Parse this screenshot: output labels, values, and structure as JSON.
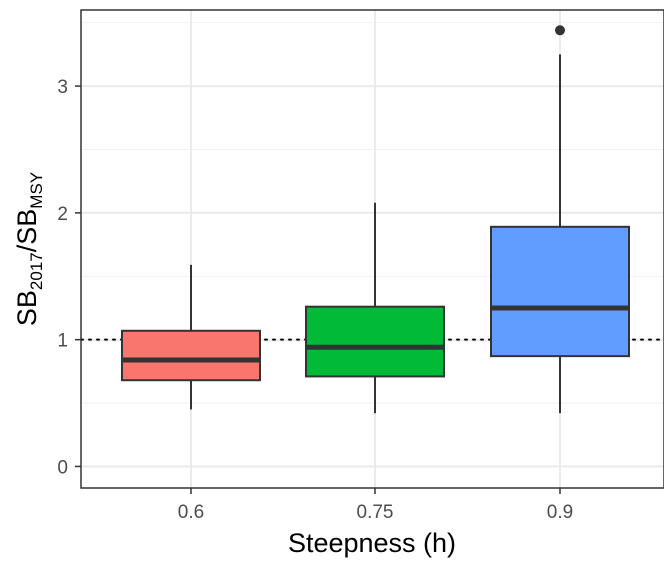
{
  "chart_data": {
    "type": "boxplot",
    "xlabel": "Steepness (h)",
    "ylabel": {
      "part1": "SB",
      "sub1": "2017",
      "slash": "/",
      "part2": "SB",
      "sub2": "MSY"
    },
    "categories": [
      "0.6",
      "0.75",
      "0.9"
    ],
    "yticks": [
      "0",
      "1",
      "2",
      "3"
    ],
    "ylim": [
      -0.17,
      3.6
    ],
    "reference_line": 1,
    "grid": true,
    "boxes": [
      {
        "category": "0.6",
        "min": 0.45,
        "q1": 0.68,
        "median": 0.84,
        "q3": 1.07,
        "max": 1.59,
        "outliers": [],
        "color": "#F8766D"
      },
      {
        "category": "0.75",
        "min": 0.42,
        "q1": 0.71,
        "median": 0.94,
        "q3": 1.26,
        "max": 2.08,
        "outliers": [],
        "color": "#00BA38"
      },
      {
        "category": "0.9",
        "min": 0.42,
        "q1": 0.87,
        "median": 1.25,
        "q3": 1.89,
        "max": 3.25,
        "outliers": [
          3.44
        ],
        "color": "#619CFF"
      }
    ]
  }
}
